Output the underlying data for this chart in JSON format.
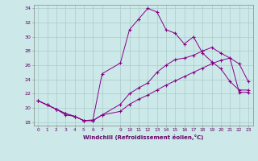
{
  "xlabel": "Windchill (Refroidissement éolien,°C)",
  "background_color": "#cce8e8",
  "grid_color": "#aacccc",
  "line_color": "#880088",
  "xlim": [
    -0.5,
    23.5
  ],
  "ylim": [
    17.5,
    34.5
  ],
  "xtick_vals": [
    0,
    1,
    2,
    3,
    4,
    5,
    6,
    7,
    9,
    10,
    11,
    12,
    13,
    14,
    15,
    16,
    17,
    18,
    19,
    20,
    21,
    22,
    23
  ],
  "xtick_labels": [
    "0",
    "1",
    "2",
    "3",
    "4",
    "5",
    "6",
    "7",
    "9",
    "10",
    "11",
    "12",
    "13",
    "14",
    "15",
    "16",
    "17",
    "18",
    "19",
    "20",
    "21",
    "22",
    "23"
  ],
  "yticks": [
    18,
    20,
    22,
    24,
    26,
    28,
    30,
    32,
    34
  ],
  "hours": [
    0,
    1,
    2,
    3,
    4,
    5,
    6,
    7,
    9,
    10,
    11,
    12,
    13,
    14,
    15,
    16,
    17,
    18,
    19,
    20,
    21,
    22,
    23
  ],
  "line_top": [
    21.0,
    20.4,
    19.8,
    19.0,
    18.8,
    18.2,
    18.3,
    24.8,
    26.3,
    31.0,
    32.5,
    34.0,
    33.5,
    31.0,
    30.5,
    29.0,
    30.0,
    27.7,
    26.5,
    25.5,
    23.7,
    22.5,
    22.5
  ],
  "line_mid": [
    21.0,
    20.4,
    19.8,
    19.2,
    18.8,
    18.2,
    18.2,
    19.0,
    20.5,
    22.0,
    22.8,
    23.5,
    25.0,
    26.0,
    26.8,
    27.0,
    27.4,
    28.0,
    28.5,
    27.7,
    27.0,
    26.2,
    23.7
  ],
  "line_bot": [
    21.0,
    20.4,
    19.8,
    19.2,
    18.8,
    18.2,
    18.2,
    19.0,
    19.5,
    20.5,
    21.2,
    21.8,
    22.5,
    23.2,
    23.8,
    24.4,
    25.0,
    25.6,
    26.2,
    26.7,
    27.0,
    22.2,
    22.2
  ]
}
